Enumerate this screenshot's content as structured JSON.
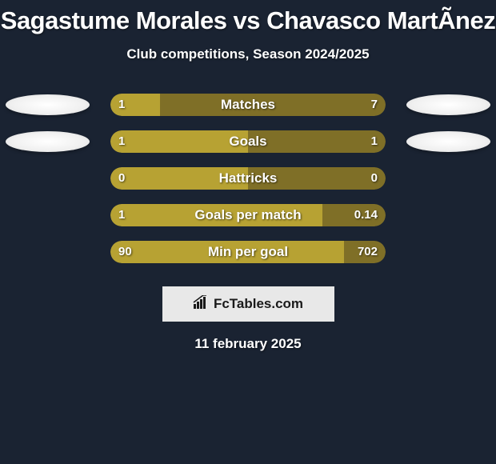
{
  "title": "Sagastume Morales vs Chavasco MartÃ­nez",
  "subtitle": "Club competitions, Season 2024/2025",
  "date": "11 february 2025",
  "logo": "FcTables.com",
  "colors": {
    "left": "#b7a233",
    "right": "#7f6f27",
    "background": "#1a2332",
    "avatar": "#ffffff",
    "logo_bg": "#e8e8e8",
    "logo_fg": "#1a1a1a"
  },
  "stats": [
    {
      "label": "Matches",
      "left_value": "1",
      "right_value": "7",
      "left_pct": 18,
      "right_pct": 82,
      "show_left_avatar": true,
      "show_right_avatar": true
    },
    {
      "label": "Goals",
      "left_value": "1",
      "right_value": "1",
      "left_pct": 50,
      "right_pct": 50,
      "show_left_avatar": true,
      "show_right_avatar": true
    },
    {
      "label": "Hattricks",
      "left_value": "0",
      "right_value": "0",
      "left_pct": 50,
      "right_pct": 50,
      "show_left_avatar": false,
      "show_right_avatar": false
    },
    {
      "label": "Goals per match",
      "left_value": "1",
      "right_value": "0.14",
      "left_pct": 77,
      "right_pct": 23,
      "show_left_avatar": false,
      "show_right_avatar": false
    },
    {
      "label": "Min per goal",
      "left_value": "90",
      "right_value": "702",
      "left_pct": 85,
      "right_pct": 15,
      "show_left_avatar": false,
      "show_right_avatar": false
    }
  ]
}
